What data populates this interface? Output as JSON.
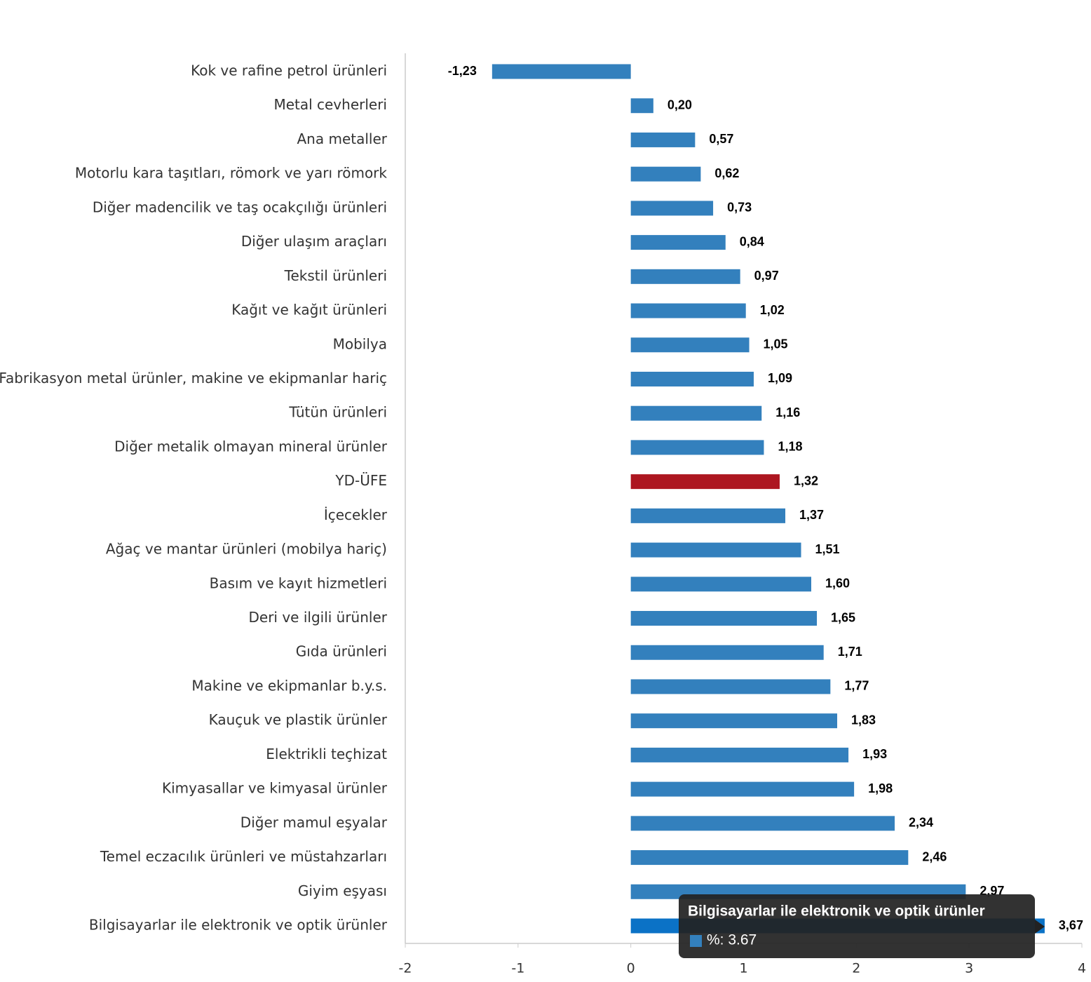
{
  "chart_data": {
    "type": "hbar",
    "categories": [
      "Kok ve rafine petrol ürünleri",
      "Metal cevherleri",
      "Ana metaller",
      "Motorlu kara taşıtları, römork ve yarı römork",
      "Diğer madencilik ve taş ocakçılığı ürünleri",
      "Diğer ulaşım araçları",
      "Tekstil ürünleri",
      "Kağıt ve kağıt ürünleri",
      "Mobilya",
      "Fabrikasyon metal ürünler, makine ve ekipmanlar hariç",
      "Tütün ürünleri",
      "Diğer metalik olmayan mineral ürünler",
      "YD-ÜFE",
      "İçecekler",
      "Ağaç ve mantar ürünleri (mobilya hariç)",
      "Basım ve kayıt hizmetleri",
      "Deri ve ilgili ürünler",
      "Gıda ürünleri",
      "Makine ve ekipmanlar b.y.s.",
      "Kauçuk ve plastik ürünler",
      "Elektrikli teçhizat",
      "Kimyasallar ve kimyasal ürünler",
      "Diğer mamul eşyalar",
      "Temel eczacılık ürünleri ve müstahzarları",
      "Giyim eşyası",
      "Bilgisayarlar ile elektronik ve optik ürünler"
    ],
    "values": [
      -1.23,
      0.2,
      0.57,
      0.62,
      0.73,
      0.84,
      0.97,
      1.02,
      1.05,
      1.09,
      1.16,
      1.18,
      1.32,
      1.37,
      1.51,
      1.6,
      1.65,
      1.71,
      1.77,
      1.83,
      1.93,
      1.98,
      2.34,
      2.46,
      2.97,
      3.67
    ],
    "value_labels": [
      "-1,23",
      "0,20",
      "0,57",
      "0,62",
      "0,73",
      "0,84",
      "0,97",
      "1,02",
      "1,05",
      "1,09",
      "1,16",
      "1,18",
      "1,32",
      "1,37",
      "1,51",
      "1,60",
      "1,65",
      "1,71",
      "1,77",
      "1,83",
      "1,93",
      "1,98",
      "2,34",
      "2,46",
      "2,97",
      "3,67"
    ],
    "colors": [
      "#3380bd",
      "#3380bd",
      "#3380bd",
      "#3380bd",
      "#3380bd",
      "#3380bd",
      "#3380bd",
      "#3380bd",
      "#3380bd",
      "#3380bd",
      "#3380bd",
      "#3380bd",
      "#ad1620",
      "#3380bd",
      "#3380bd",
      "#3380bd",
      "#3380bd",
      "#3380bd",
      "#3380bd",
      "#3380bd",
      "#3380bd",
      "#3380bd",
      "#3380bd",
      "#3380bd",
      "#3380bd",
      "#0b72c6"
    ],
    "xlim": [
      -2,
      4
    ],
    "xticks": [
      -2,
      -1,
      0,
      1,
      2,
      3,
      4
    ],
    "tooltip": {
      "title": "Bilgisayarlar ile elektronik ve optik ürünler",
      "text": "%: 3.67",
      "color": "#3380bd"
    }
  }
}
